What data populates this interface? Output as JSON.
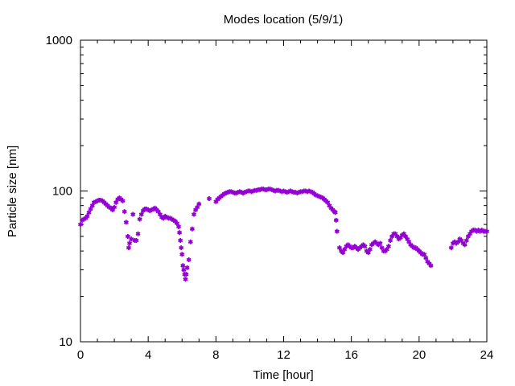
{
  "chart_data": {
    "type": "scatter",
    "title": "Modes location (5/9/1)",
    "xlabel": "Time [hour]",
    "ylabel": "Particle size [nm]",
    "xlim": [
      0,
      24
    ],
    "ylim": [
      10,
      1000
    ],
    "yscale": "log",
    "xticks": [
      0,
      4,
      8,
      12,
      16,
      20,
      24
    ],
    "xtick_labels": [
      "0",
      "4",
      "8",
      "12",
      "16",
      "20",
      "24"
    ],
    "yticks": [
      10,
      100,
      1000
    ],
    "ytick_labels": [
      "10",
      "100",
      "1000"
    ],
    "grid": false,
    "legend": "none",
    "marker_color": "#9400D3",
    "marker": "asterisk",
    "points": [
      [
        0.0,
        60
      ],
      [
        0.1,
        64
      ],
      [
        0.2,
        65
      ],
      [
        0.3,
        66
      ],
      [
        0.4,
        68
      ],
      [
        0.5,
        72
      ],
      [
        0.6,
        76
      ],
      [
        0.7,
        80
      ],
      [
        0.8,
        84
      ],
      [
        0.9,
        85
      ],
      [
        1.0,
        86
      ],
      [
        1.1,
        87
      ],
      [
        1.2,
        87
      ],
      [
        1.3,
        86
      ],
      [
        1.4,
        84
      ],
      [
        1.5,
        82
      ],
      [
        1.6,
        80
      ],
      [
        1.7,
        78
      ],
      [
        1.8,
        77
      ],
      [
        1.9,
        75
      ],
      [
        2.0,
        78
      ],
      [
        2.1,
        84
      ],
      [
        2.2,
        88
      ],
      [
        2.3,
        90
      ],
      [
        2.4,
        88
      ],
      [
        2.5,
        86
      ],
      [
        2.6,
        73
      ],
      [
        2.7,
        62
      ],
      [
        2.8,
        50
      ],
      [
        2.85,
        42
      ],
      [
        2.9,
        45
      ],
      [
        3.0,
        48
      ],
      [
        3.1,
        70
      ],
      [
        3.2,
        47
      ],
      [
        3.3,
        47
      ],
      [
        3.4,
        52
      ],
      [
        3.5,
        65
      ],
      [
        3.6,
        70
      ],
      [
        3.7,
        74
      ],
      [
        3.8,
        76
      ],
      [
        3.9,
        76
      ],
      [
        4.0,
        75
      ],
      [
        4.1,
        74
      ],
      [
        4.2,
        75
      ],
      [
        4.3,
        76
      ],
      [
        4.4,
        77
      ],
      [
        4.5,
        75
      ],
      [
        4.6,
        73
      ],
      [
        4.7,
        70
      ],
      [
        4.8,
        67
      ],
      [
        4.9,
        66
      ],
      [
        5.0,
        68
      ],
      [
        5.1,
        67
      ],
      [
        5.2,
        66
      ],
      [
        5.3,
        66
      ],
      [
        5.4,
        65
      ],
      [
        5.5,
        64
      ],
      [
        5.6,
        63
      ],
      [
        5.7,
        61
      ],
      [
        5.8,
        58
      ],
      [
        5.85,
        53
      ],
      [
        5.9,
        47
      ],
      [
        5.95,
        42
      ],
      [
        6.0,
        38
      ],
      [
        6.05,
        32
      ],
      [
        6.1,
        30
      ],
      [
        6.15,
        28
      ],
      [
        6.2,
        26
      ],
      [
        6.25,
        28
      ],
      [
        6.3,
        31
      ],
      [
        6.4,
        35
      ],
      [
        6.5,
        46
      ],
      [
        6.6,
        56
      ],
      [
        6.7,
        70
      ],
      [
        6.8,
        75
      ],
      [
        6.9,
        78
      ],
      [
        7.0,
        82
      ],
      [
        7.6,
        89
      ],
      [
        8.0,
        85
      ],
      [
        8.1,
        88
      ],
      [
        8.2,
        90
      ],
      [
        8.3,
        92
      ],
      [
        8.4,
        94
      ],
      [
        8.5,
        96
      ],
      [
        8.6,
        97
      ],
      [
        8.7,
        98
      ],
      [
        8.8,
        99
      ],
      [
        8.9,
        99
      ],
      [
        9.0,
        98
      ],
      [
        9.1,
        97
      ],
      [
        9.2,
        97
      ],
      [
        9.3,
        98
      ],
      [
        9.4,
        99
      ],
      [
        9.5,
        98
      ],
      [
        9.6,
        97
      ],
      [
        9.7,
        98
      ],
      [
        9.8,
        99
      ],
      [
        9.9,
        100
      ],
      [
        10.0,
        100
      ],
      [
        10.1,
        99
      ],
      [
        10.2,
        100
      ],
      [
        10.3,
        101
      ],
      [
        10.4,
        101
      ],
      [
        10.5,
        102
      ],
      [
        10.6,
        102
      ],
      [
        10.7,
        103
      ],
      [
        10.8,
        103
      ],
      [
        10.9,
        102
      ],
      [
        11.0,
        102
      ],
      [
        11.1,
        103
      ],
      [
        11.2,
        103
      ],
      [
        11.3,
        102
      ],
      [
        11.4,
        101
      ],
      [
        11.5,
        100
      ],
      [
        11.6,
        101
      ],
      [
        11.7,
        101
      ],
      [
        11.8,
        100
      ],
      [
        11.9,
        99
      ],
      [
        12.0,
        100
      ],
      [
        12.1,
        99
      ],
      [
        12.2,
        98
      ],
      [
        12.3,
        99
      ],
      [
        12.4,
        100
      ],
      [
        12.5,
        99
      ],
      [
        12.6,
        98
      ],
      [
        12.7,
        98
      ],
      [
        12.8,
        97
      ],
      [
        12.9,
        98
      ],
      [
        13.0,
        99
      ],
      [
        13.1,
        99
      ],
      [
        13.2,
        100
      ],
      [
        13.3,
        100
      ],
      [
        13.4,
        99
      ],
      [
        13.5,
        100
      ],
      [
        13.6,
        99
      ],
      [
        13.7,
        98
      ],
      [
        13.8,
        96
      ],
      [
        13.9,
        94
      ],
      [
        14.0,
        93
      ],
      [
        14.1,
        92
      ],
      [
        14.2,
        91
      ],
      [
        14.3,
        90
      ],
      [
        14.4,
        88
      ],
      [
        14.5,
        86
      ],
      [
        14.6,
        84
      ],
      [
        14.7,
        80
      ],
      [
        14.8,
        77
      ],
      [
        14.9,
        75
      ],
      [
        15.0,
        73
      ],
      [
        15.05,
        72
      ],
      [
        15.1,
        64
      ],
      [
        15.15,
        54
      ],
      [
        15.3,
        42
      ],
      [
        15.4,
        40
      ],
      [
        15.5,
        39
      ],
      [
        15.6,
        41
      ],
      [
        15.7,
        43
      ],
      [
        15.8,
        44
      ],
      [
        15.9,
        43
      ],
      [
        16.0,
        42
      ],
      [
        16.1,
        42
      ],
      [
        16.2,
        43
      ],
      [
        16.3,
        42
      ],
      [
        16.4,
        41
      ],
      [
        16.5,
        42
      ],
      [
        16.6,
        43
      ],
      [
        16.7,
        44
      ],
      [
        16.8,
        43
      ],
      [
        16.9,
        40
      ],
      [
        17.0,
        39
      ],
      [
        17.1,
        41
      ],
      [
        17.2,
        44
      ],
      [
        17.3,
        45
      ],
      [
        17.4,
        46
      ],
      [
        17.5,
        45
      ],
      [
        17.6,
        44
      ],
      [
        17.7,
        45
      ],
      [
        17.8,
        42
      ],
      [
        17.9,
        40
      ],
      [
        18.0,
        40
      ],
      [
        18.1,
        41
      ],
      [
        18.2,
        43
      ],
      [
        18.3,
        47
      ],
      [
        18.4,
        50
      ],
      [
        18.5,
        52
      ],
      [
        18.6,
        52
      ],
      [
        18.7,
        50
      ],
      [
        18.8,
        48
      ],
      [
        18.9,
        49
      ],
      [
        19.0,
        51
      ],
      [
        19.1,
        52
      ],
      [
        19.2,
        50
      ],
      [
        19.3,
        48
      ],
      [
        19.4,
        46
      ],
      [
        19.5,
        44
      ],
      [
        19.6,
        43
      ],
      [
        19.7,
        42
      ],
      [
        19.8,
        42
      ],
      [
        19.9,
        41
      ],
      [
        20.0,
        40
      ],
      [
        20.1,
        39
      ],
      [
        20.2,
        38
      ],
      [
        20.3,
        38
      ],
      [
        20.4,
        36
      ],
      [
        20.5,
        34
      ],
      [
        20.6,
        33
      ],
      [
        20.7,
        32
      ],
      [
        21.9,
        42
      ],
      [
        22.0,
        45
      ],
      [
        22.1,
        46
      ],
      [
        22.2,
        45
      ],
      [
        22.3,
        46
      ],
      [
        22.4,
        48
      ],
      [
        22.5,
        47
      ],
      [
        22.6,
        45
      ],
      [
        22.7,
        44
      ],
      [
        22.8,
        47
      ],
      [
        22.9,
        50
      ],
      [
        23.0,
        52
      ],
      [
        23.1,
        54
      ],
      [
        23.2,
        55
      ],
      [
        23.3,
        55
      ],
      [
        23.4,
        54
      ],
      [
        23.5,
        55
      ],
      [
        23.6,
        54
      ],
      [
        23.7,
        55
      ],
      [
        23.8,
        54
      ],
      [
        23.9,
        54
      ],
      [
        24.0,
        54
      ]
    ]
  }
}
